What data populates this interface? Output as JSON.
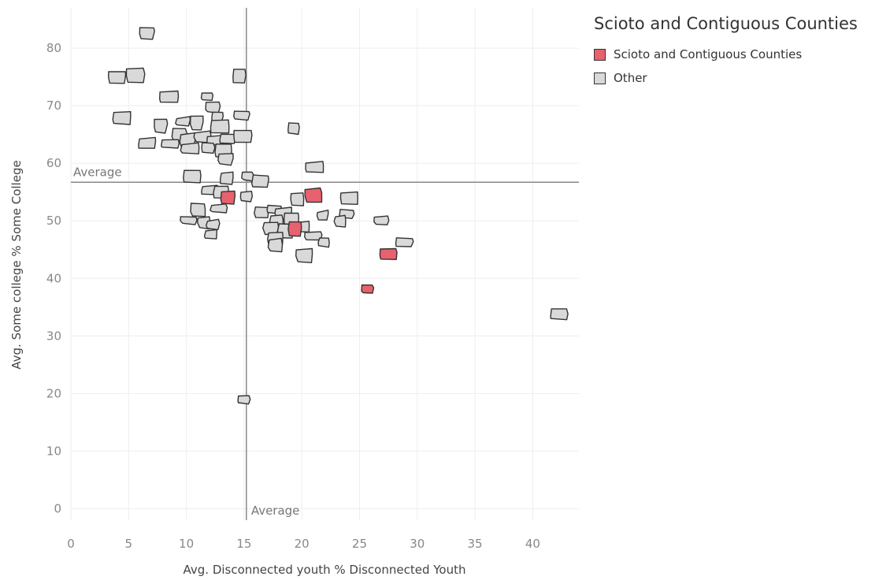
{
  "chart_data": {
    "type": "scatter",
    "xlabel": "Avg. Disconnected youth % Disconnected Youth",
    "ylabel": "Avg. Some college % Some College",
    "xlim": [
      0,
      44
    ],
    "ylim": [
      -2,
      87
    ],
    "xticks": [
      0,
      5,
      10,
      15,
      20,
      25,
      30,
      35,
      40
    ],
    "yticks": [
      0,
      10,
      20,
      30,
      40,
      50,
      60,
      70,
      80
    ],
    "grid": true,
    "reference_lines": [
      {
        "axis": "x",
        "value": 15.2,
        "label": "Average"
      },
      {
        "axis": "y",
        "value": 56.7,
        "label": "Average"
      }
    ],
    "legend": {
      "title": "Scioto and Contiguous Counties",
      "position": "top-right",
      "entries": [
        {
          "label": "Scioto and Contiguous Counties",
          "color": "#e8616e"
        },
        {
          "label": "Other",
          "color": "#d9d9d9"
        }
      ]
    },
    "series": [
      {
        "name": "Scioto and Contiguous Counties",
        "color": "#e8616e",
        "points": [
          [
            13.6,
            54.1
          ],
          [
            21.0,
            54.5
          ],
          [
            19.4,
            48.6
          ],
          [
            27.5,
            44.3
          ],
          [
            25.7,
            38.2
          ]
        ]
      },
      {
        "name": "Other",
        "color": "#d9d9d9",
        "points": [
          [
            6.6,
            82.6
          ],
          [
            4.0,
            75.0
          ],
          [
            5.6,
            75.3
          ],
          [
            8.5,
            71.6
          ],
          [
            14.6,
            75.2
          ],
          [
            11.8,
            71.7
          ],
          [
            12.3,
            69.7
          ],
          [
            4.4,
            67.9
          ],
          [
            7.8,
            66.5
          ],
          [
            9.7,
            67.3
          ],
          [
            10.9,
            67.0
          ],
          [
            12.7,
            68.0
          ],
          [
            14.8,
            68.3
          ],
          [
            12.9,
            66.4
          ],
          [
            19.3,
            66.1
          ],
          [
            9.4,
            65.0
          ],
          [
            10.1,
            64.0
          ],
          [
            11.4,
            64.6
          ],
          [
            12.5,
            64.0
          ],
          [
            13.6,
            64.3
          ],
          [
            14.9,
            64.7
          ],
          [
            6.6,
            63.6
          ],
          [
            8.6,
            63.4
          ],
          [
            10.3,
            62.6
          ],
          [
            11.9,
            62.7
          ],
          [
            13.2,
            62.2
          ],
          [
            13.4,
            60.7
          ],
          [
            21.1,
            59.4
          ],
          [
            10.5,
            57.7
          ],
          [
            13.5,
            57.4
          ],
          [
            15.3,
            57.8
          ],
          [
            16.4,
            56.9
          ],
          [
            12.0,
            55.4
          ],
          [
            13.0,
            55.0
          ],
          [
            15.2,
            54.3
          ],
          [
            19.6,
            53.8
          ],
          [
            24.1,
            54.0
          ],
          [
            11.0,
            51.9
          ],
          [
            12.8,
            52.2
          ],
          [
            16.5,
            51.5
          ],
          [
            17.6,
            52.0
          ],
          [
            18.4,
            51.3
          ],
          [
            21.8,
            51.0
          ],
          [
            23.9,
            51.2
          ],
          [
            10.2,
            50.1
          ],
          [
            11.5,
            49.7
          ],
          [
            12.3,
            49.4
          ],
          [
            17.8,
            50.0
          ],
          [
            19.1,
            50.4
          ],
          [
            20.0,
            49.0
          ],
          [
            23.3,
            50.0
          ],
          [
            26.9,
            50.1
          ],
          [
            17.3,
            48.8
          ],
          [
            18.6,
            48.3
          ],
          [
            21.0,
            47.5
          ],
          [
            12.1,
            47.7
          ],
          [
            17.7,
            47.0
          ],
          [
            21.9,
            46.3
          ],
          [
            28.9,
            46.3
          ],
          [
            17.7,
            45.8
          ],
          [
            20.2,
            44.0
          ],
          [
            15.0,
            19.0
          ],
          [
            42.3,
            33.8
          ]
        ]
      }
    ]
  }
}
